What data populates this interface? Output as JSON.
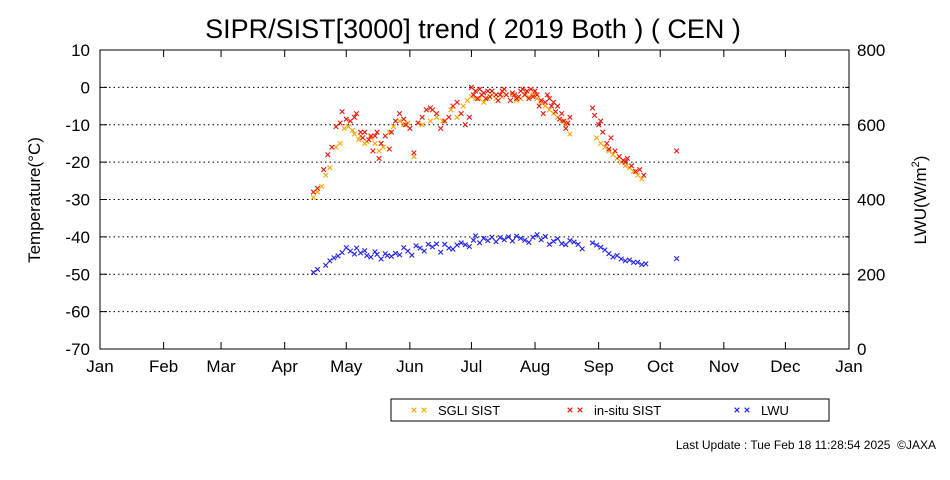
{
  "footer": {
    "last_update": "Last Update : Tue Feb 18 11:28:54 2025",
    "copyright": "©JAXA"
  },
  "chart_data": {
    "type": "scatter",
    "title": "SIPR/SIST[3000] trend ( 2019 Both ) ( CEN )",
    "ylabel_left": "Temperature(°C)",
    "ylabel_right_base": "LWU(W/m",
    "ylabel_right_sup": "2",
    "ylabel_right_end": ")",
    "x_unit": "day of year",
    "xlim": [
      0,
      365
    ],
    "ylim_left": [
      -70,
      10
    ],
    "ylim_right": [
      0,
      800
    ],
    "grid": "horizontal dotted",
    "legend_position": "bottom-right",
    "x_tick_labels": [
      "Jan",
      "Feb",
      "Mar",
      "Apr",
      "May",
      "Jun",
      "Jul",
      "Aug",
      "Sep",
      "Oct",
      "Nov",
      "Dec",
      "Jan"
    ],
    "x_tick_days": [
      0,
      31,
      59,
      90,
      120,
      151,
      181,
      212,
      243,
      273,
      304,
      334,
      365
    ],
    "left_tick_labels": [
      "10",
      "0",
      "-10",
      "-20",
      "-30",
      "-40",
      "-50",
      "-60",
      "-70"
    ],
    "left_tick_values": [
      10,
      0,
      -10,
      -20,
      -30,
      -40,
      -50,
      -60,
      -70
    ],
    "right_tick_labels": [
      "800",
      "600",
      "400",
      "200",
      "0"
    ],
    "right_tick_values": [
      800,
      600,
      400,
      200,
      0
    ],
    "series": [
      {
        "name": "SGLI SIST",
        "axis": "left",
        "color": "#ffa500",
        "points": [
          [
            104,
            -29.5
          ],
          [
            106,
            -28
          ],
          [
            108,
            -26.5
          ],
          [
            110,
            -23.5
          ],
          [
            112,
            -21.5
          ],
          [
            115,
            -16
          ],
          [
            117,
            -15
          ],
          [
            119,
            -11
          ],
          [
            121,
            -10.5
          ],
          [
            123,
            -11.5
          ],
          [
            124,
            -12.5
          ],
          [
            126,
            -14
          ],
          [
            127,
            -13
          ],
          [
            129,
            -15
          ],
          [
            130,
            -14.5
          ],
          [
            132,
            -13.5
          ],
          [
            134,
            -15
          ],
          [
            136,
            -17
          ],
          [
            138,
            -16
          ],
          [
            141,
            -12
          ],
          [
            143,
            -10.5
          ],
          [
            146,
            -9
          ],
          [
            148,
            -10
          ],
          [
            150,
            -9.5
          ],
          [
            153,
            -18.5
          ],
          [
            157,
            -10
          ],
          [
            161,
            -9
          ],
          [
            164,
            -8
          ],
          [
            167,
            -9
          ],
          [
            171,
            -6
          ],
          [
            174,
            -8
          ],
          [
            177,
            -5
          ],
          [
            179,
            -3.5
          ],
          [
            181,
            -2.5
          ],
          [
            183,
            -3
          ],
          [
            185,
            -3
          ],
          [
            187,
            -4
          ],
          [
            189,
            -3
          ],
          [
            191,
            -2
          ],
          [
            193,
            -3
          ],
          [
            196,
            -2.5
          ],
          [
            201,
            -2
          ],
          [
            203,
            -3.5
          ],
          [
            205,
            -3
          ],
          [
            207,
            -2
          ],
          [
            209,
            -2.5
          ],
          [
            211,
            -2
          ],
          [
            213,
            -3
          ],
          [
            215,
            -4
          ],
          [
            217,
            -5
          ],
          [
            219,
            -6
          ],
          [
            221,
            -7
          ],
          [
            223,
            -8
          ],
          [
            225,
            -9
          ],
          [
            227,
            -10
          ],
          [
            229,
            -12.5
          ],
          [
            242,
            -13.5
          ],
          [
            244,
            -15
          ],
          [
            246,
            -16
          ],
          [
            248,
            -17
          ],
          [
            250,
            -18
          ],
          [
            252,
            -19
          ],
          [
            254,
            -20
          ],
          [
            256,
            -21
          ],
          [
            258,
            -21.5
          ],
          [
            260,
            -22.5
          ],
          [
            262,
            -23.5
          ],
          [
            264,
            -24.5
          ]
        ]
      },
      {
        "name": "in-situ SIST",
        "axis": "left",
        "color": "#e8150a",
        "points": [
          [
            104,
            -28
          ],
          [
            106,
            -27
          ],
          [
            109,
            -22
          ],
          [
            111,
            -18
          ],
          [
            113,
            -16
          ],
          [
            115,
            -10.5
          ],
          [
            117,
            -9.5
          ],
          [
            118,
            -6.5
          ],
          [
            120,
            -8.5
          ],
          [
            122,
            -9
          ],
          [
            124,
            -8
          ],
          [
            125,
            -7
          ],
          [
            127,
            -12
          ],
          [
            128,
            -13.5
          ],
          [
            129,
            -12
          ],
          [
            131,
            -14
          ],
          [
            132,
            -13
          ],
          [
            133,
            -17
          ],
          [
            134,
            -13
          ],
          [
            135,
            -12
          ],
          [
            136,
            -19
          ],
          [
            137,
            -15
          ],
          [
            139,
            -13
          ],
          [
            141,
            -16.5
          ],
          [
            142,
            -12
          ],
          [
            144,
            -9
          ],
          [
            146,
            -7
          ],
          [
            148,
            -8.5
          ],
          [
            149,
            -10
          ],
          [
            151,
            -11
          ],
          [
            153,
            -17.5
          ],
          [
            155,
            -9.5
          ],
          [
            157,
            -8
          ],
          [
            159,
            -6
          ],
          [
            161,
            -5.5
          ],
          [
            162,
            -6
          ],
          [
            164,
            -7
          ],
          [
            166,
            -11
          ],
          [
            168,
            -9
          ],
          [
            170,
            -8
          ],
          [
            172,
            -5
          ],
          [
            174,
            -4
          ],
          [
            176,
            -7
          ],
          [
            178,
            -10
          ],
          [
            180,
            -8
          ],
          [
            181,
            0
          ],
          [
            182,
            -2
          ],
          [
            183,
            -1
          ],
          [
            184,
            -3
          ],
          [
            185,
            -0.5
          ],
          [
            186,
            -2
          ],
          [
            187,
            -1.5
          ],
          [
            188,
            -3
          ],
          [
            189,
            -1
          ],
          [
            190,
            -2.5
          ],
          [
            191,
            -1
          ],
          [
            193,
            -2
          ],
          [
            194,
            -3.5
          ],
          [
            195,
            -2
          ],
          [
            196,
            -1
          ],
          [
            197,
            -0.5
          ],
          [
            198,
            -2
          ],
          [
            200,
            -3.5
          ],
          [
            201,
            -1.5
          ],
          [
            202,
            -2
          ],
          [
            203,
            -3
          ],
          [
            204,
            -2.5
          ],
          [
            205,
            -1
          ],
          [
            206,
            -0.5
          ],
          [
            207,
            -2
          ],
          [
            208,
            -1
          ],
          [
            209,
            -3
          ],
          [
            210,
            -0.5
          ],
          [
            211,
            -2.5
          ],
          [
            212,
            -1
          ],
          [
            213,
            -2
          ],
          [
            214,
            -5
          ],
          [
            215,
            -3.5
          ],
          [
            216,
            -7
          ],
          [
            217,
            -4
          ],
          [
            218,
            -2
          ],
          [
            219,
            -3
          ],
          [
            220,
            -5
          ],
          [
            221,
            -4
          ],
          [
            222,
            -6.5
          ],
          [
            223,
            -5
          ],
          [
            224,
            -8.5
          ],
          [
            225,
            -7
          ],
          [
            226,
            -9
          ],
          [
            227,
            -11
          ],
          [
            228,
            -9.5
          ],
          [
            229,
            -8
          ],
          [
            240,
            -5.5
          ],
          [
            241,
            -7.5
          ],
          [
            243,
            -10
          ],
          [
            244,
            -9
          ],
          [
            245,
            -12
          ],
          [
            247,
            -15
          ],
          [
            248,
            -16.5
          ],
          [
            249,
            -13.5
          ],
          [
            251,
            -17
          ],
          [
            253,
            -18.5
          ],
          [
            255,
            -19.5
          ],
          [
            256,
            -20
          ],
          [
            257,
            -19
          ],
          [
            259,
            -21
          ],
          [
            261,
            -22.5
          ],
          [
            263,
            -22
          ],
          [
            265,
            -23.5
          ],
          [
            281,
            -17
          ]
        ]
      },
      {
        "name": "LWU",
        "axis": "right",
        "color": "#1e1ef0",
        "points": [
          [
            104,
            205
          ],
          [
            106,
            213
          ],
          [
            110,
            224
          ],
          [
            112,
            236
          ],
          [
            114,
            244
          ],
          [
            116,
            249
          ],
          [
            118,
            258
          ],
          [
            120,
            271
          ],
          [
            122,
            262
          ],
          [
            124,
            254
          ],
          [
            125,
            270
          ],
          [
            127,
            257
          ],
          [
            129,
            263
          ],
          [
            130,
            250
          ],
          [
            132,
            246
          ],
          [
            134,
            260
          ],
          [
            135,
            253
          ],
          [
            137,
            241
          ],
          [
            139,
            255
          ],
          [
            140,
            250
          ],
          [
            142,
            248
          ],
          [
            144,
            256
          ],
          [
            146,
            252
          ],
          [
            148,
            271
          ],
          [
            150,
            262
          ],
          [
            152,
            251
          ],
          [
            154,
            276
          ],
          [
            156,
            270
          ],
          [
            158,
            262
          ],
          [
            160,
            280
          ],
          [
            162,
            273
          ],
          [
            164,
            281
          ],
          [
            166,
            259
          ],
          [
            168,
            280
          ],
          [
            170,
            270
          ],
          [
            172,
            267
          ],
          [
            174,
            278
          ],
          [
            176,
            284
          ],
          [
            178,
            279
          ],
          [
            180,
            274
          ],
          [
            182,
            291
          ],
          [
            183,
            303
          ],
          [
            185,
            284
          ],
          [
            187,
            296
          ],
          [
            189,
            290
          ],
          [
            191,
            299
          ],
          [
            193,
            287
          ],
          [
            195,
            298
          ],
          [
            197,
            292
          ],
          [
            199,
            300
          ],
          [
            201,
            289
          ],
          [
            203,
            302
          ],
          [
            205,
            296
          ],
          [
            207,
            291
          ],
          [
            209,
            285
          ],
          [
            211,
            299
          ],
          [
            213,
            306
          ],
          [
            215,
            292
          ],
          [
            217,
            301
          ],
          [
            219,
            280
          ],
          [
            221,
            288
          ],
          [
            223,
            295
          ],
          [
            225,
            282
          ],
          [
            227,
            279
          ],
          [
            229,
            290
          ],
          [
            231,
            286
          ],
          [
            233,
            280
          ],
          [
            235,
            268
          ],
          [
            240,
            284
          ],
          [
            242,
            278
          ],
          [
            244,
            272
          ],
          [
            246,
            265
          ],
          [
            248,
            255
          ],
          [
            250,
            246
          ],
          [
            252,
            250
          ],
          [
            254,
            241
          ],
          [
            256,
            236
          ],
          [
            258,
            238
          ],
          [
            260,
            232
          ],
          [
            262,
            232
          ],
          [
            264,
            226
          ],
          [
            266,
            228
          ],
          [
            281,
            242
          ]
        ]
      }
    ]
  }
}
